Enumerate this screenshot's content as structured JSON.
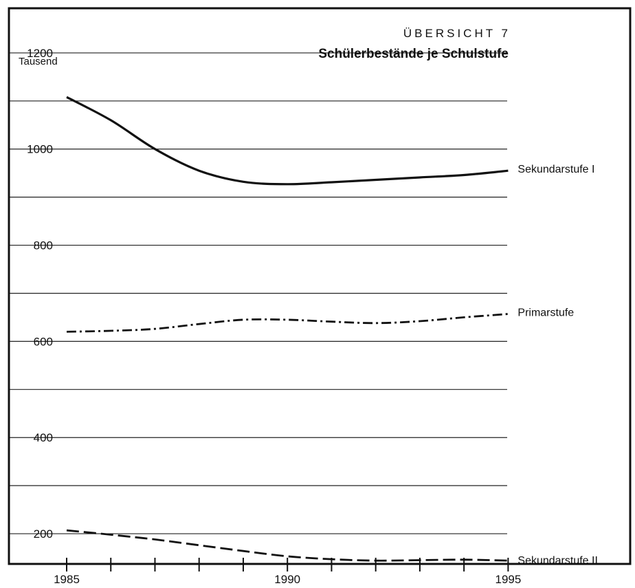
{
  "chart_data": {
    "type": "line",
    "overline": "ÜBERSICHT 7",
    "title": "Schülerbestände je Schulstufe",
    "ylabel": "Tausend",
    "xlabel": "",
    "x": [
      1985,
      1986,
      1987,
      1988,
      1989,
      1990,
      1991,
      1992,
      1993,
      1994,
      1995
    ],
    "xlim": [
      1985,
      1997.5
    ],
    "ylim": [
      140,
      1290
    ],
    "y_gridlines": [
      200,
      300,
      400,
      500,
      600,
      700,
      800,
      900,
      1000,
      1100,
      1200
    ],
    "y_tick_labels": [
      {
        "value": 200,
        "label": "200"
      },
      {
        "value": 400,
        "label": "400"
      },
      {
        "value": 600,
        "label": "600"
      },
      {
        "value": 800,
        "label": "800"
      },
      {
        "value": 1000,
        "label": "1000"
      },
      {
        "value": 1200,
        "label": "1200"
      }
    ],
    "x_ticks": [
      1985,
      1986,
      1987,
      1988,
      1989,
      1990,
      1991,
      1992,
      1993,
      1994,
      1995
    ],
    "x_tick_labels": [
      {
        "value": 1985,
        "label": "1985"
      },
      {
        "value": 1990,
        "label": "1990"
      },
      {
        "value": 1995,
        "label": "1995"
      }
    ],
    "grid": true,
    "series": [
      {
        "name": "Sekundarstufe I",
        "style": "solid",
        "values": [
          1108,
          1060,
          1000,
          955,
          932,
          927,
          931,
          936,
          941,
          946,
          955
        ]
      },
      {
        "name": "Primarstufe",
        "style": "dash-dot",
        "values": [
          620,
          622,
          626,
          636,
          645,
          645,
          641,
          638,
          642,
          650,
          657
        ]
      },
      {
        "name": "Sekundarstufe II",
        "style": "dashed",
        "values": [
          207,
          198,
          188,
          176,
          164,
          153,
          147,
          144,
          145,
          146,
          144
        ]
      }
    ],
    "colors": {
      "ink": "#111111",
      "background": "#ffffff"
    }
  }
}
